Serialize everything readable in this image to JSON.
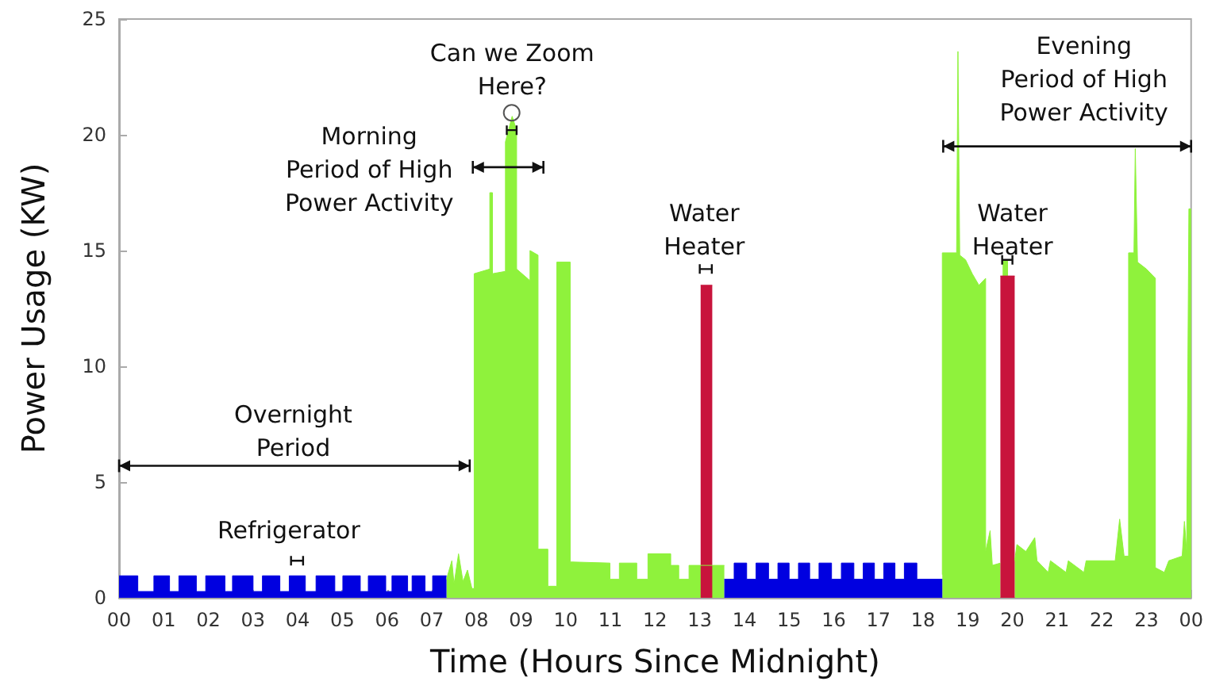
{
  "chart_data": {
    "type": "area",
    "xlabel": "Time (Hours Since Midnight)",
    "ylabel": "Power Usage (KW)",
    "xlim": [
      0,
      24
    ],
    "ylim": [
      0,
      25
    ],
    "xticks": [
      {
        "value": 0,
        "label": "00"
      },
      {
        "value": 1,
        "label": "01"
      },
      {
        "value": 2,
        "label": "02"
      },
      {
        "value": 3,
        "label": "03"
      },
      {
        "value": 4,
        "label": "04"
      },
      {
        "value": 5,
        "label": "05"
      },
      {
        "value": 6,
        "label": "06"
      },
      {
        "value": 7,
        "label": "07"
      },
      {
        "value": 8,
        "label": "08"
      },
      {
        "value": 9,
        "label": "09"
      },
      {
        "value": 10,
        "label": "10"
      },
      {
        "value": 11,
        "label": "11"
      },
      {
        "value": 12,
        "label": "12"
      },
      {
        "value": 13,
        "label": "13"
      },
      {
        "value": 14,
        "label": "14"
      },
      {
        "value": 15,
        "label": "15"
      },
      {
        "value": 16,
        "label": "16"
      },
      {
        "value": 17,
        "label": "17"
      },
      {
        "value": 18,
        "label": "18"
      },
      {
        "value": 19,
        "label": "19"
      },
      {
        "value": 20,
        "label": "20"
      },
      {
        "value": 21,
        "label": "21"
      },
      {
        "value": 22,
        "label": "22"
      },
      {
        "value": 23,
        "label": "23"
      },
      {
        "value": 24,
        "label": "00"
      }
    ],
    "yticks": [
      0,
      5,
      10,
      15,
      20,
      25
    ],
    "grid": false,
    "series": [
      {
        "color": "#8ff23c",
        "x": [
          7.33,
          7.45,
          7.5,
          7.6,
          7.7,
          7.8,
          7.9,
          7.95,
          7.95,
          8.3,
          8.3,
          8.36,
          8.36,
          8.65,
          8.65,
          8.8,
          8.9,
          8.9,
          9.2,
          9.2,
          9.38,
          9.38,
          9.6,
          9.6,
          9.8,
          9.8,
          10.1,
          10.1,
          10.99,
          10.99,
          11.2,
          11.2,
          11.59,
          11.59,
          11.84,
          11.84,
          12.35,
          12.35,
          12.53,
          12.53,
          12.76,
          12.76,
          13.0,
          13.15,
          13.3,
          13.55,
          13.6,
          18.43,
          18.43,
          18.75,
          18.78,
          18.82,
          18.95,
          19.1,
          19.25,
          19.4,
          19.4,
          19.5,
          19.55,
          19.73,
          19.75,
          19.78,
          19.9,
          19.95,
          20.05,
          20.1,
          20.3,
          20.5,
          20.55,
          20.8,
          20.85,
          21.2,
          21.25,
          21.6,
          21.65,
          22.3,
          22.4,
          22.5,
          22.6,
          22.6,
          22.72,
          22.75,
          22.8,
          23.0,
          23.2,
          23.2,
          23.4,
          23.5,
          23.8,
          23.85,
          23.9,
          23.95,
          24
        ],
        "values": [
          0.8,
          1.6,
          0.6,
          1.9,
          0.7,
          1.2,
          0.4,
          0.4,
          14,
          14.2,
          17.5,
          17.5,
          14,
          14.1,
          19.7,
          20.8,
          20.2,
          14.2,
          13.7,
          15,
          14.8,
          2.1,
          2.1,
          0.5,
          0.5,
          14.5,
          14.5,
          1.55,
          1.5,
          0.8,
          0.8,
          1.5,
          1.5,
          0.8,
          0.8,
          1.9,
          1.9,
          1.4,
          1.4,
          0.8,
          0.8,
          1.4,
          1.4,
          1.4,
          1.4,
          1.4,
          null,
          1.0,
          14.9,
          14.9,
          23.6,
          14.8,
          14.6,
          14.0,
          13.5,
          13.8,
          2.0,
          2.9,
          1.4,
          1.5,
          null,
          14.6,
          14.6,
          null,
          1.6,
          2.3,
          2.0,
          2.6,
          1.6,
          1.1,
          1.6,
          1.1,
          1.6,
          1.1,
          1.6,
          1.6,
          3.4,
          1.8,
          1.8,
          14.9,
          14.9,
          19.4,
          14.5,
          14.2,
          13.8,
          1.3,
          1.1,
          1.6,
          1.8,
          3.3,
          2.0,
          16.8,
          16.8
        ]
      },
      {
        "color": "#0000e0",
        "x": [
          0,
          0.42,
          0.42,
          0.78,
          0.78,
          1.13,
          1.13,
          1.34,
          1.34,
          1.73,
          1.73,
          1.94,
          1.94,
          2.37,
          2.37,
          2.54,
          2.54,
          3.0,
          3.0,
          3.21,
          3.21,
          3.6,
          3.6,
          3.81,
          3.81,
          4.17,
          4.17,
          4.41,
          4.41,
          4.83,
          4.83,
          5.01,
          5.01,
          5.4,
          5.4,
          5.58,
          5.58,
          5.97,
          5.97,
          6.11,
          6.11,
          6.46,
          6.46,
          6.56,
          6.56,
          6.85,
          6.85,
          7.02,
          7.02,
          7.33,
          10,
          13.55,
          13.77,
          13.77,
          14.05,
          14.05,
          14.26,
          14.26,
          14.54,
          14.54,
          14.75,
          14.75,
          15.0,
          15.0,
          15.21,
          15.21,
          15.46,
          15.46,
          15.67,
          15.67,
          15.95,
          15.95,
          16.17,
          16.17,
          16.45,
          16.45,
          16.66,
          16.66,
          16.91,
          16.91,
          17.12,
          17.12,
          17.37,
          17.37,
          17.58,
          17.58,
          17.86,
          17.86,
          18.43
        ],
        "values": [
          0.95,
          0.95,
          0.27,
          0.27,
          0.95,
          0.95,
          0.27,
          0.27,
          0.95,
          0.95,
          0.27,
          0.27,
          0.95,
          0.95,
          0.27,
          0.27,
          0.95,
          0.95,
          0.27,
          0.27,
          0.95,
          0.95,
          0.27,
          0.27,
          0.95,
          0.95,
          0.27,
          0.27,
          0.95,
          0.95,
          0.27,
          0.27,
          0.95,
          0.95,
          0.27,
          0.27,
          0.95,
          0.95,
          0.27,
          0.27,
          0.95,
          0.95,
          0.27,
          0.27,
          0.95,
          0.95,
          0.27,
          0.27,
          0.95,
          0.95,
          null,
          0.8,
          0.8,
          1.5,
          1.5,
          0.8,
          0.8,
          1.5,
          1.5,
          0.8,
          0.8,
          1.5,
          1.5,
          0.8,
          0.8,
          1.5,
          1.5,
          0.8,
          0.8,
          1.5,
          1.5,
          0.8,
          0.8,
          1.5,
          1.5,
          0.8,
          0.8,
          1.5,
          1.5,
          0.8,
          0.8,
          1.5,
          1.5,
          0.8,
          0.8,
          1.5,
          1.5,
          0.8,
          0.8
        ]
      },
      {
        "color": "#c8143c",
        "x": [
          13.02,
          13.28,
          15,
          19.73,
          20.05
        ],
        "values": [
          13.5,
          13.5,
          null,
          13.9,
          13.9
        ]
      }
    ],
    "annotations": [
      "Overnight\nPeriod",
      "Refrigerator",
      "Morning\nPeriod of High\nPower Activity",
      "Can we Zoom\nHere?",
      "Water\nHeater",
      "Water\nHeater",
      "Evening\nPeriod of High\nPower Activity"
    ]
  }
}
